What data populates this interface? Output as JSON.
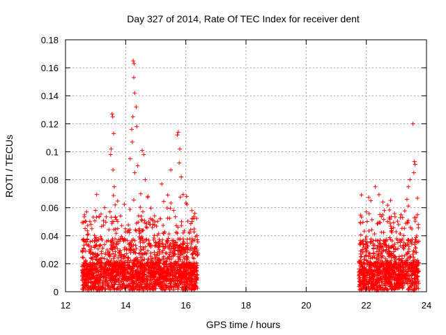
{
  "chart_data": {
    "type": "scatter",
    "title": "Day 327 of 2014, Rate Of TEC Index for receiver dent",
    "xlabel": "GPS time / hours",
    "ylabel": "ROTI / TECUs",
    "xlim": [
      12,
      24
    ],
    "ylim": [
      0,
      0.18
    ],
    "xticks": [
      "12",
      "14",
      "16",
      "18",
      "20",
      "22",
      "24"
    ],
    "yticks": [
      "0",
      "0.02",
      "0.04",
      "0.06",
      "0.08",
      "0.1",
      "0.12",
      "0.14",
      "0.16",
      "0.18"
    ],
    "grid": true,
    "marker": "+",
    "color": "#ff0000",
    "series": [
      {
        "name": "ROTI",
        "segments": [
          [
            12.55,
            16.4
          ],
          [
            21.75,
            23.75
          ]
        ],
        "x": [
          13.55,
          13.57,
          13.6,
          13.52,
          13.5,
          13.58,
          13.62,
          13.65,
          14.25,
          14.28,
          14.27,
          14.3,
          14.24,
          14.35,
          14.37,
          14.2,
          14.22,
          14.15,
          14.4,
          14.3,
          14.55,
          14.6,
          14.65,
          14.5,
          15.75,
          15.72,
          15.8,
          15.78,
          15.85,
          15.5,
          15.2,
          15.4,
          13.0,
          12.7,
          12.65,
          13.3,
          16.2,
          16.3,
          23.55,
          23.6,
          23.62,
          23.58,
          23.45,
          23.4,
          23.35,
          22.3,
          22.15,
          22.55,
          22.6,
          22.0,
          23.7,
          23.65
        ],
        "y": [
          0.127,
          0.125,
          0.113,
          0.102,
          0.098,
          0.087,
          0.075,
          0.062,
          0.165,
          0.163,
          0.153,
          0.142,
          0.125,
          0.132,
          0.118,
          0.116,
          0.107,
          0.095,
          0.09,
          0.085,
          0.101,
          0.098,
          0.08,
          0.07,
          0.114,
          0.112,
          0.102,
          0.092,
          0.082,
          0.087,
          0.077,
          0.069,
          0.058,
          0.057,
          0.05,
          0.06,
          0.058,
          0.056,
          0.12,
          0.093,
          0.091,
          0.085,
          0.08,
          0.075,
          0.066,
          0.075,
          0.065,
          0.064,
          0.058,
          0.057,
          0.055,
          0.053
        ]
      }
    ]
  }
}
